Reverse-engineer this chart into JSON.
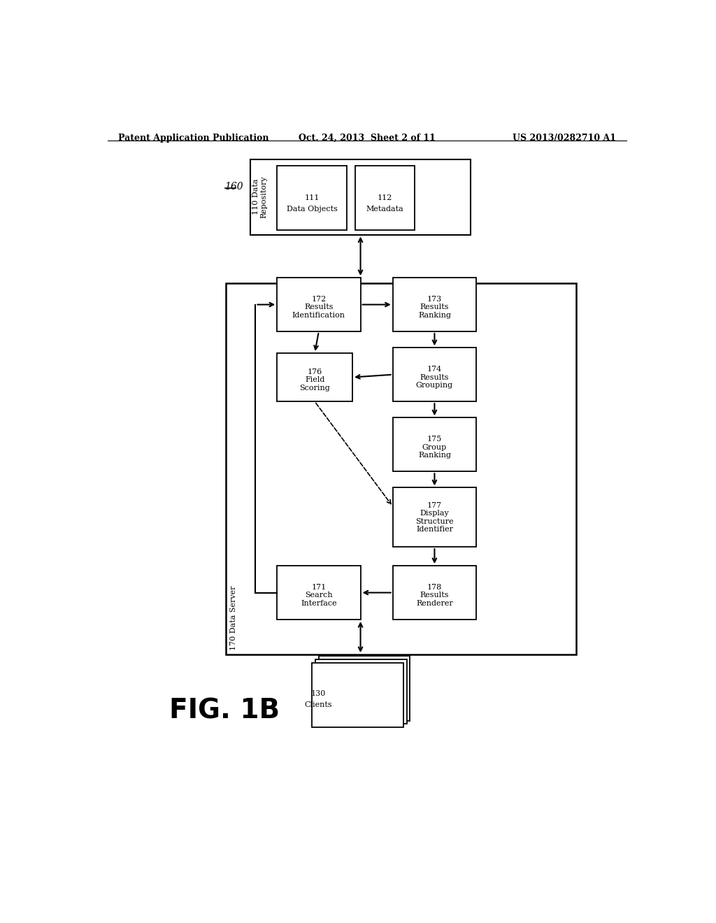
{
  "header_left": "Patent Application Publication",
  "header_mid": "Oct. 24, 2013  Sheet 2 of 11",
  "header_right": "US 2013/0282710 A1",
  "fig_label": "FIG. 1B",
  "bg_color": "#ffffff"
}
